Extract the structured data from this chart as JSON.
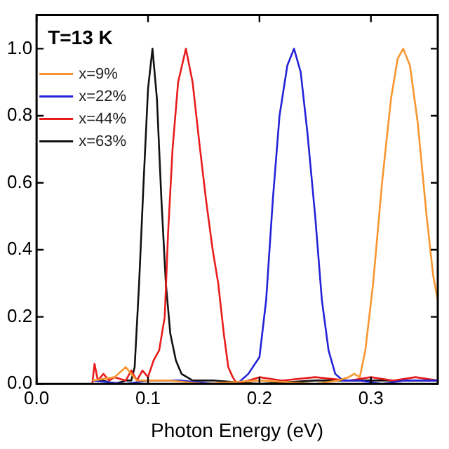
{
  "chart_data": {
    "type": "line",
    "xlabel": "Photon Energy (eV)",
    "annotations": [
      "T=13 K"
    ],
    "xlim": [
      0,
      0.36
    ],
    "ylim": [
      0,
      1.1
    ],
    "xticks": [
      {
        "value": 0,
        "label": "0.0"
      },
      0.1,
      0.2,
      0.3
    ],
    "yticks": [
      {
        "value": 0,
        "label": "0.0"
      },
      0.2,
      0.4,
      0.6,
      0.8,
      {
        "value": 1,
        "label": "1.0"
      }
    ],
    "grid": false,
    "legend": "top left",
    "marker": "none",
    "line_style": "solid",
    "series": [
      {
        "name": "x=9%",
        "color": "#f7962f",
        "x": [
          0.05,
          0.07,
          0.08,
          0.09,
          0.12,
          0.15,
          0.2,
          0.25,
          0.27,
          0.28,
          0.285,
          0.29,
          0.295,
          0.302,
          0.31,
          0.318,
          0.324,
          0.329,
          0.335,
          0.342,
          0.35,
          0.356,
          0.36
        ],
        "values": [
          0.01,
          0.02,
          0.05,
          0.01,
          0.01,
          0.0,
          0.01,
          0.0,
          0.01,
          0.02,
          0.03,
          0.02,
          0.1,
          0.3,
          0.6,
          0.85,
          0.97,
          1.0,
          0.95,
          0.78,
          0.5,
          0.32,
          0.25
        ]
      },
      {
        "name": "x=22%",
        "color": "#2323d8",
        "x": [
          0.05,
          0.08,
          0.1,
          0.13,
          0.16,
          0.18,
          0.19,
          0.2,
          0.206,
          0.212,
          0.218,
          0.225,
          0.231,
          0.237,
          0.243,
          0.25,
          0.256,
          0.262,
          0.268,
          0.275,
          0.29,
          0.31,
          0.33,
          0.36
        ],
        "values": [
          0.01,
          0.0,
          0.01,
          0.01,
          0.0,
          0.0,
          0.03,
          0.08,
          0.25,
          0.55,
          0.8,
          0.95,
          1.0,
          0.93,
          0.75,
          0.5,
          0.25,
          0.1,
          0.03,
          0.01,
          0.01,
          0.0,
          0.01,
          0.01
        ]
      },
      {
        "name": "x=44%",
        "color": "#e81c1c",
        "x": [
          0.05,
          0.052,
          0.055,
          0.06,
          0.065,
          0.07,
          0.08,
          0.085,
          0.09,
          0.095,
          0.1,
          0.105,
          0.11,
          0.115,
          0.118,
          0.122,
          0.127,
          0.134,
          0.14,
          0.146,
          0.152,
          0.158,
          0.163,
          0.168,
          0.172,
          0.176,
          0.18,
          0.2,
          0.22,
          0.25,
          0.28,
          0.3,
          0.32,
          0.34,
          0.36
        ],
        "values": [
          0.0,
          0.06,
          0.01,
          0.03,
          0.01,
          0.02,
          0.01,
          0.04,
          0.01,
          0.04,
          0.02,
          0.07,
          0.1,
          0.2,
          0.45,
          0.7,
          0.9,
          1.0,
          0.9,
          0.72,
          0.55,
          0.4,
          0.3,
          0.15,
          0.05,
          0.02,
          0.0,
          0.02,
          0.01,
          0.02,
          0.01,
          0.02,
          0.01,
          0.02,
          0.01
        ]
      },
      {
        "name": "x=63%",
        "color": "#111111",
        "x": [
          0.05,
          0.06,
          0.07,
          0.08,
          0.085,
          0.088,
          0.092,
          0.096,
          0.1,
          0.104,
          0.108,
          0.112,
          0.116,
          0.12,
          0.125,
          0.13,
          0.14,
          0.16,
          0.2,
          0.25,
          0.3,
          0.36
        ],
        "values": [
          0.01,
          0.01,
          0.0,
          0.01,
          0.01,
          0.05,
          0.3,
          0.6,
          0.88,
          1.0,
          0.85,
          0.55,
          0.3,
          0.15,
          0.07,
          0.03,
          0.01,
          0.01,
          0.0,
          0.01,
          0.01,
          0.01
        ]
      }
    ]
  }
}
